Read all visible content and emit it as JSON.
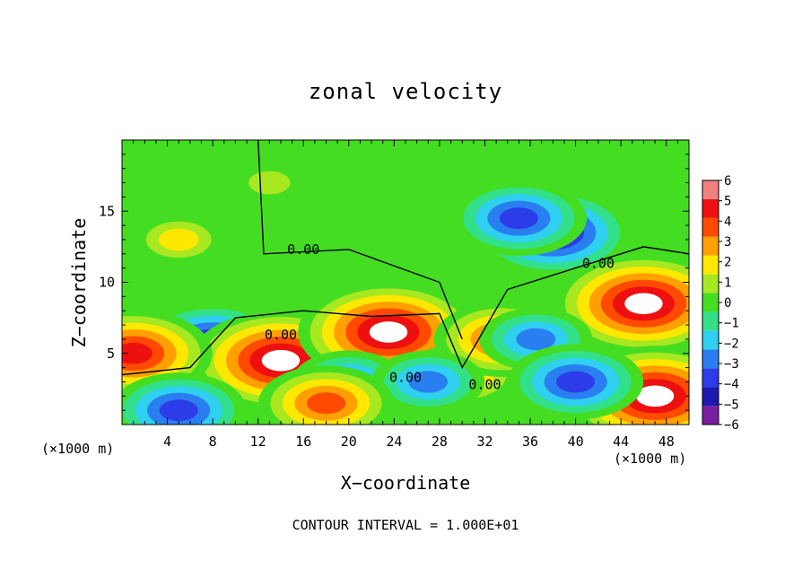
{
  "chart_data": {
    "type": "heatmap",
    "title": "zonal velocity",
    "xlabel": "X−coordinate",
    "ylabel": "Z−coordinate",
    "x_unit": "(×1000 m)",
    "xlim": [
      0,
      50
    ],
    "ylim": [
      0,
      20
    ],
    "x_ticks": [
      4,
      8,
      12,
      16,
      20,
      24,
      28,
      32,
      36,
      40,
      44,
      48
    ],
    "y_ticks": [
      5,
      10,
      15
    ],
    "colorbar": {
      "min": -6,
      "max": 6,
      "ticks": [
        6,
        5,
        4,
        3,
        2,
        1,
        0,
        -1,
        -2,
        -3,
        -4,
        -5,
        -6
      ],
      "colors": [
        "#7a1fa2",
        "#1a1ab0",
        "#2c3ce8",
        "#2a7ff0",
        "#2fd0f0",
        "#33e08a",
        "#44dd22",
        "#a8e820",
        "#ffe800",
        "#ffa000",
        "#ff4a00",
        "#ee1010",
        "#f08080"
      ]
    },
    "contour_label": "0.00",
    "contour_interval": "CONTOUR INTERVAL = 1.000E+01",
    "features": [
      {
        "x": 38,
        "z": 13.5,
        "value": -5
      },
      {
        "x": 35,
        "z": 14.5,
        "value": -4
      },
      {
        "x": 5,
        "z": 13,
        "value": 1.5
      },
      {
        "x": 13,
        "z": 17,
        "value": 0.5
      },
      {
        "x": 8,
        "z": 5.5,
        "value": -5
      },
      {
        "x": 14,
        "z": 4.5,
        "value": 6
      },
      {
        "x": 23.5,
        "z": 6.5,
        "value": 6
      },
      {
        "x": 46,
        "z": 8.5,
        "value": 6
      },
      {
        "x": 30,
        "z": 3.5,
        "value": 3
      },
      {
        "x": 33.5,
        "z": 6,
        "value": 4
      },
      {
        "x": 36.5,
        "z": 6,
        "value": -3
      },
      {
        "x": 20,
        "z": 3,
        "value": -3
      },
      {
        "x": 27,
        "z": 3,
        "value": -3
      },
      {
        "x": 1,
        "z": 5,
        "value": 5
      },
      {
        "x": 5,
        "z": 1,
        "value": -4
      },
      {
        "x": 47,
        "z": 2,
        "value": 6
      },
      {
        "x": 40,
        "z": 3,
        "value": -4
      },
      {
        "x": 18,
        "z": 1.5,
        "value": 4
      }
    ]
  }
}
